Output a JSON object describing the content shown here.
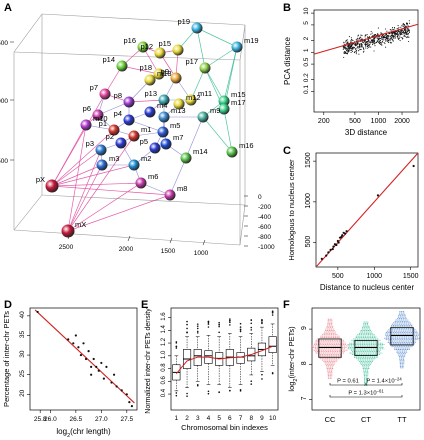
{
  "panel_labels": {
    "A": "A",
    "B": "B",
    "C": "C",
    "D": "D",
    "E": "E",
    "F": "F"
  },
  "chart_data": [
    {
      "id": "A",
      "type": "scatter3d",
      "title": "",
      "z_ticks": [
        "500",
        "1000",
        "1500"
      ],
      "x_ticks": [
        "2500",
        "2000",
        "1500",
        "1000"
      ],
      "y_ticks": [
        "0",
        "-200",
        "-400",
        "-600",
        "-800",
        "-1000"
      ],
      "paternal_color": "#e0409a",
      "maternal_color": "#3fbf9a",
      "nodes": [
        {
          "label": "p19",
          "color": "#3bb3e0"
        },
        {
          "label": "m19",
          "color": "#3bb3e0"
        },
        {
          "label": "p16",
          "color": "#7fd23a"
        },
        {
          "label": "p12",
          "color": "#e8d93a"
        },
        {
          "label": "p15",
          "color": "#e8d93a"
        },
        {
          "label": "p17",
          "color": "#8fd04a"
        },
        {
          "label": "p14",
          "color": "#6ad23a"
        },
        {
          "label": "p18",
          "color": "#e8d93a"
        },
        {
          "label": "m18",
          "color": "#e8d93a"
        },
        {
          "label": "p9",
          "color": "#e8a83a"
        },
        {
          "label": "p7",
          "color": "#e0409a"
        },
        {
          "label": "m16",
          "color": "#59c24a"
        },
        {
          "label": "p6",
          "color": "#c43aa8"
        },
        {
          "label": "p8",
          "color": "#9a3ad0"
        },
        {
          "label": "p13",
          "color": "#3aa6b0"
        },
        {
          "label": "m11",
          "color": "#e8d93a"
        },
        {
          "label": "m15",
          "color": "#3ad08a"
        },
        {
          "label": "m17",
          "color": "#3ad08a"
        },
        {
          "label": "m10",
          "color": "#b03ad0"
        },
        {
          "label": "p1",
          "color": "#d0342a"
        },
        {
          "label": "p4",
          "color": "#2a3ad0"
        },
        {
          "label": "m13",
          "color": "#3a8ad0"
        },
        {
          "label": "m9",
          "color": "#4ab0a0"
        },
        {
          "label": "m5",
          "color": "#2a5ad0"
        },
        {
          "label": "m1",
          "color": "#d0342a"
        },
        {
          "label": "p3",
          "color": "#2a7ad0"
        },
        {
          "label": "p2",
          "color": "#2a3ad0"
        },
        {
          "label": "m3",
          "color": "#2a6ad0"
        },
        {
          "label": "m2",
          "color": "#1a8ad0"
        },
        {
          "label": "p5",
          "color": "#2a3ad0"
        },
        {
          "label": "m7",
          "color": "#1a4ad0"
        },
        {
          "label": "m14",
          "color": "#59c24a"
        },
        {
          "label": "m12",
          "color": "#e8d93a"
        },
        {
          "label": "m4",
          "color": "#2a3ad0"
        },
        {
          "label": "m6",
          "color": "#c43aa8"
        },
        {
          "label": "m8",
          "color": "#c43aa8"
        },
        {
          "label": "pX",
          "color": "#c4183a"
        },
        {
          "label": "mX",
          "color": "#c4183a"
        }
      ]
    },
    {
      "id": "B",
      "type": "scatter",
      "title": "",
      "xlabel": "3D distance",
      "ylabel": "PCA distance",
      "xscale": "log",
      "yscale": "log",
      "xlim": [
        150,
        3200
      ],
      "ylim": [
        0.03,
        12
      ],
      "x_ticks": [
        "200",
        "500",
        "1000",
        "2000"
      ],
      "y_ticks": [
        "0.1",
        "0.2",
        "0.5",
        "1",
        "2",
        "5",
        "10"
      ],
      "fit_line": {
        "x": [
          150,
          3200
        ],
        "y": [
          0.9,
          5.2
        ],
        "color": "#d42020"
      },
      "points": {
        "count": 700,
        "x_range": [
          240,
          2600
        ],
        "y_range": [
          0.05,
          10
        ]
      }
    },
    {
      "id": "C",
      "type": "scatter",
      "title": "",
      "xlabel": "Distance to nucleus center",
      "ylabel": "Homologous to nucleus center",
      "xlim": [
        200,
        1600
      ],
      "ylim": [
        200,
        1600
      ],
      "x_ticks": [
        "500",
        "1000",
        "1500"
      ],
      "y_ticks": [
        "500",
        "1000",
        "1500"
      ],
      "fit_line": {
        "x": [
          210,
          1600
        ],
        "y": [
          210,
          1600
        ],
        "color": "#d42020"
      },
      "x": [
        280,
        340,
        370,
        400,
        430,
        440,
        460,
        480,
        500,
        510,
        530,
        550,
        560,
        580,
        600,
        620,
        1050,
        1540
      ],
      "y": [
        300,
        340,
        380,
        410,
        420,
        450,
        480,
        470,
        520,
        500,
        560,
        570,
        590,
        620,
        610,
        640,
        1080,
        1440
      ]
    },
    {
      "id": "D",
      "type": "scatter",
      "title": "",
      "xlabel": "log",
      "xlabel_sub": "2",
      "xlabel_rest": "(chr length)",
      "ylabel": "Percentage of inter-chr PETs",
      "xlim": [
        25.6,
        27.7
      ],
      "ylim": [
        16,
        42
      ],
      "x_ticks": [
        "25.8",
        "26.0",
        "26.5",
        "27.0",
        "27.5"
      ],
      "x_tick_values": [
        25.8,
        26.0,
        26.5,
        27.0,
        27.5
      ],
      "y_ticks": [
        "20",
        "25",
        "30",
        "35",
        "40"
      ],
      "fit_line": {
        "x": [
          25.7,
          27.65
        ],
        "y": [
          41.5,
          17.8
        ],
        "color": "#d42020"
      },
      "x": [
        25.75,
        26.35,
        26.45,
        26.5,
        26.55,
        26.6,
        26.65,
        26.7,
        26.75,
        26.8,
        26.8,
        26.85,
        26.9,
        26.95,
        27.0,
        27.05,
        27.1,
        27.2,
        27.25,
        27.3,
        27.4,
        27.5,
        27.55,
        27.6
      ],
      "y": [
        41,
        34,
        33,
        35,
        32,
        30,
        33,
        29,
        31,
        27,
        25,
        29,
        27,
        26,
        28,
        24,
        27,
        23,
        25,
        22,
        21,
        20,
        18,
        17
      ]
    },
    {
      "id": "E",
      "type": "boxplot",
      "title": "",
      "xlabel": "Chromosomal bin indexes",
      "ylabel": "Normalized inter-chr PETs density",
      "categories": [
        "1",
        "2",
        "3",
        "4",
        "5",
        "6",
        "7",
        "8",
        "9",
        "10"
      ],
      "ylim": [
        0.15,
        1.75
      ],
      "y_ticks": [
        "0.4",
        "0.6",
        "0.8",
        "1.0",
        "1.2",
        "1.4",
        "1.6"
      ],
      "y_tick_values": [
        0.4,
        0.6,
        0.8,
        1.0,
        1.2,
        1.4,
        1.6
      ],
      "boxes": [
        {
          "min": 0.45,
          "q1": 0.62,
          "median": 0.74,
          "q3": 0.86,
          "max": 1.0,
          "mean": 0.72
        },
        {
          "min": 0.5,
          "q1": 0.8,
          "median": 0.95,
          "q3": 1.1,
          "max": 1.3,
          "mean": 0.92
        },
        {
          "min": 0.6,
          "q1": 0.85,
          "median": 1.0,
          "q3": 1.1,
          "max": 1.3,
          "mean": 0.98
        },
        {
          "min": 0.55,
          "q1": 0.88,
          "median": 1.0,
          "q3": 1.08,
          "max": 1.32,
          "mean": 0.98
        },
        {
          "min": 0.55,
          "q1": 0.85,
          "median": 0.96,
          "q3": 1.05,
          "max": 1.3,
          "mean": 0.95
        },
        {
          "min": 0.5,
          "q1": 0.85,
          "median": 0.98,
          "q3": 1.1,
          "max": 1.35,
          "mean": 0.97
        },
        {
          "min": 0.55,
          "q1": 0.88,
          "median": 0.98,
          "q3": 1.05,
          "max": 1.3,
          "mean": 0.98
        },
        {
          "min": 0.7,
          "q1": 0.92,
          "median": 1.0,
          "q3": 1.12,
          "max": 1.35,
          "mean": 1.02
        },
        {
          "min": 0.75,
          "q1": 1.0,
          "median": 1.1,
          "q3": 1.2,
          "max": 1.45,
          "mean": 1.08
        },
        {
          "min": 0.85,
          "q1": 1.05,
          "median": 1.15,
          "q3": 1.3,
          "max": 1.5,
          "mean": 1.15
        }
      ],
      "mean_color": "#d42020"
    },
    {
      "id": "F",
      "type": "beeswarm-boxplot",
      "title": "",
      "ylabel": "log",
      "ylabel_sub": "2",
      "ylabel_rest": "(inter-chr PETs)",
      "categories": [
        "CC",
        "CT",
        "TT"
      ],
      "colors": [
        "#e8808a",
        "#3fbf9a",
        "#5a8ad0"
      ],
      "ylim": [
        6.7,
        9.6
      ],
      "y_ticks": [
        "7",
        "8",
        "9"
      ],
      "y_tick_values": [
        7,
        8,
        9
      ],
      "boxes": [
        {
          "q1": 8.2,
          "median": 8.48,
          "q3": 8.72,
          "spread_min": 7.6,
          "spread_max": 9.3
        },
        {
          "q1": 8.25,
          "median": 8.48,
          "q3": 8.68,
          "spread_min": 7.4,
          "spread_max": 9.2
        },
        {
          "q1": 8.55,
          "median": 8.82,
          "q3": 9.05,
          "spread_min": 7.9,
          "spread_max": 9.5
        }
      ],
      "comparisons": [
        {
          "label": "P = 0.61",
          "from": 0,
          "to": 1
        },
        {
          "label_prefix": "P = 1.4×10",
          "label_sup": "−24",
          "from": 1,
          "to": 2
        },
        {
          "label_prefix": "P = 1.3×10",
          "label_sup": "−61",
          "from": 0,
          "to": 2
        }
      ]
    }
  ]
}
